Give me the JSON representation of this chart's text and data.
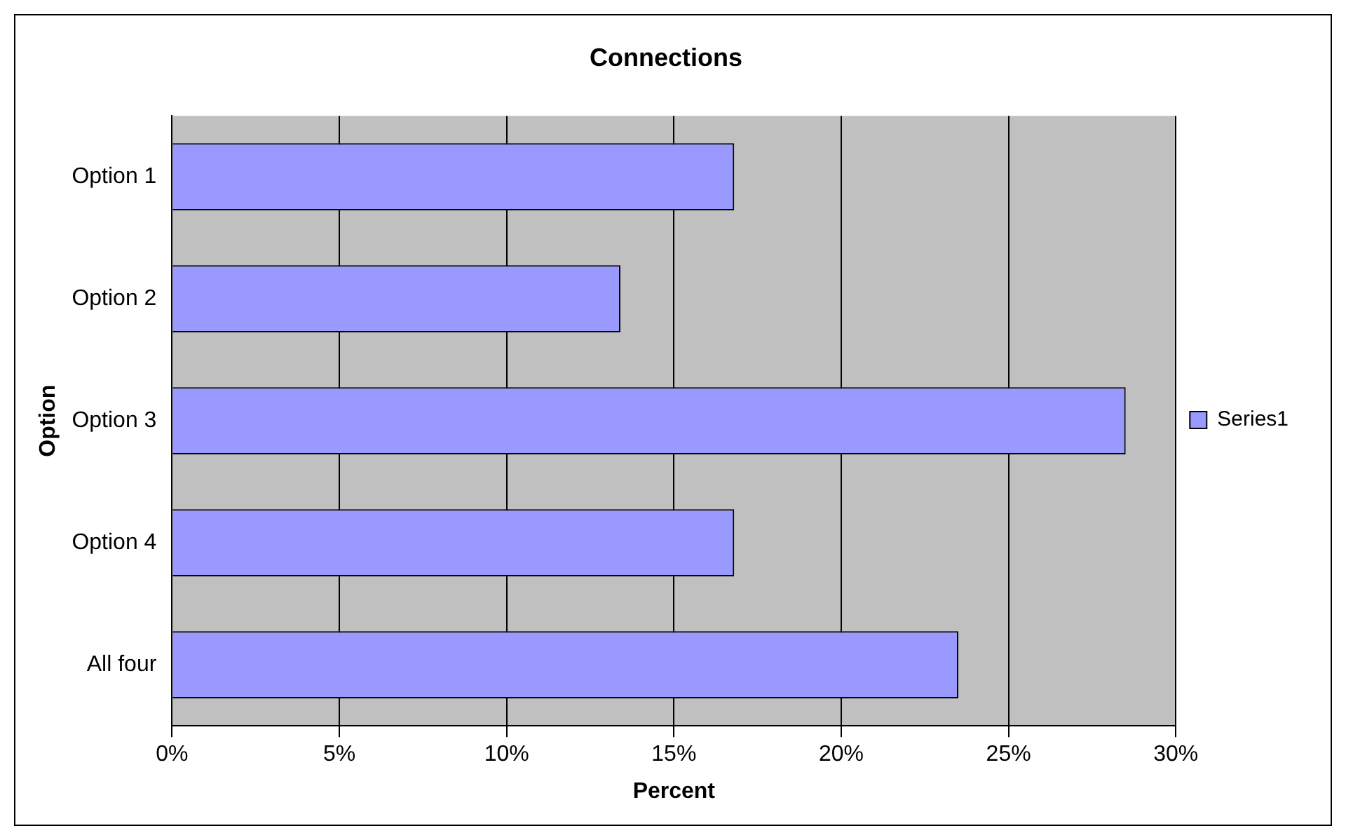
{
  "chart_data": {
    "type": "bar",
    "orientation": "horizontal",
    "title": "Connections",
    "xlabel": "Percent",
    "ylabel": "Option",
    "categories": [
      "Option 1",
      "Option 2",
      "Option 3",
      "Option 4",
      "All four"
    ],
    "series": [
      {
        "name": "Series1",
        "color": "#9999ff",
        "values": [
          16.8,
          13.4,
          28.5,
          16.8,
          23.5
        ]
      }
    ],
    "xlim": [
      0,
      30
    ],
    "xticks": [
      {
        "value": 0,
        "label": "0%"
      },
      {
        "value": 5,
        "label": "5%"
      },
      {
        "value": 10,
        "label": "10%"
      },
      {
        "value": 15,
        "label": "15%"
      },
      {
        "value": 20,
        "label": "20%"
      },
      {
        "value": 25,
        "label": "25%"
      },
      {
        "value": 30,
        "label": "30%"
      }
    ],
    "grid": "x",
    "legend": "right"
  }
}
